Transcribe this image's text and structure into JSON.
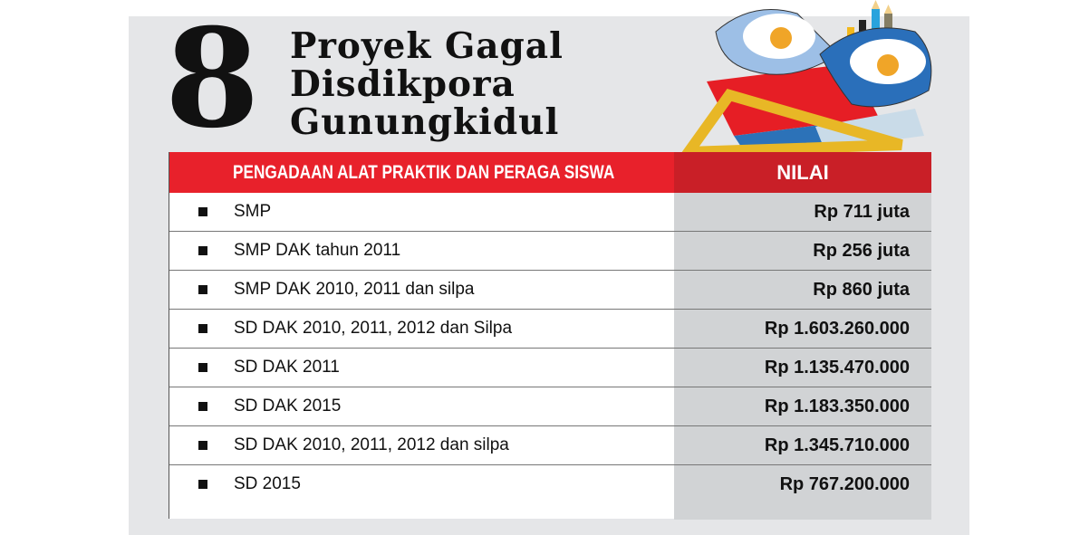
{
  "title": {
    "number": "8",
    "lines": [
      "Proyek Gagal",
      "Disdikpora",
      "Gunungkidul"
    ]
  },
  "illustration": {
    "icons": [
      "school-cap-icon",
      "book-icon",
      "ruler-icon",
      "pencil-icon"
    ]
  },
  "colors": {
    "header_red": "#e8212b",
    "header_dark_red": "#c91f27",
    "value_bg": "#d1d3d5",
    "panel_bg": "#e5e6e8"
  },
  "table": {
    "headers": [
      "PENGADAAN ALAT PRAKTIK DAN PERAGA SISWA",
      "NILAI"
    ],
    "rows": [
      {
        "item": "SMP",
        "value": "Rp 711 juta"
      },
      {
        "item": "SMP DAK tahun 2011",
        "value": "Rp 256 juta"
      },
      {
        "item": "SMP DAK 2010, 2011 dan silpa",
        "value": "Rp 860 juta"
      },
      {
        "item": "SD DAK 2010, 2011, 2012 dan Silpa",
        "value": "Rp 1.603.260.000"
      },
      {
        "item": "SD DAK 2011",
        "value": "Rp 1.135.470.000"
      },
      {
        "item": "SD DAK 2015",
        "value": "Rp 1.183.350.000"
      },
      {
        "item": "SD DAK 2010, 2011, 2012 dan silpa",
        "value": "Rp 1.345.710.000"
      },
      {
        "item": "SD 2015",
        "value": "Rp 767.200.000"
      }
    ]
  }
}
